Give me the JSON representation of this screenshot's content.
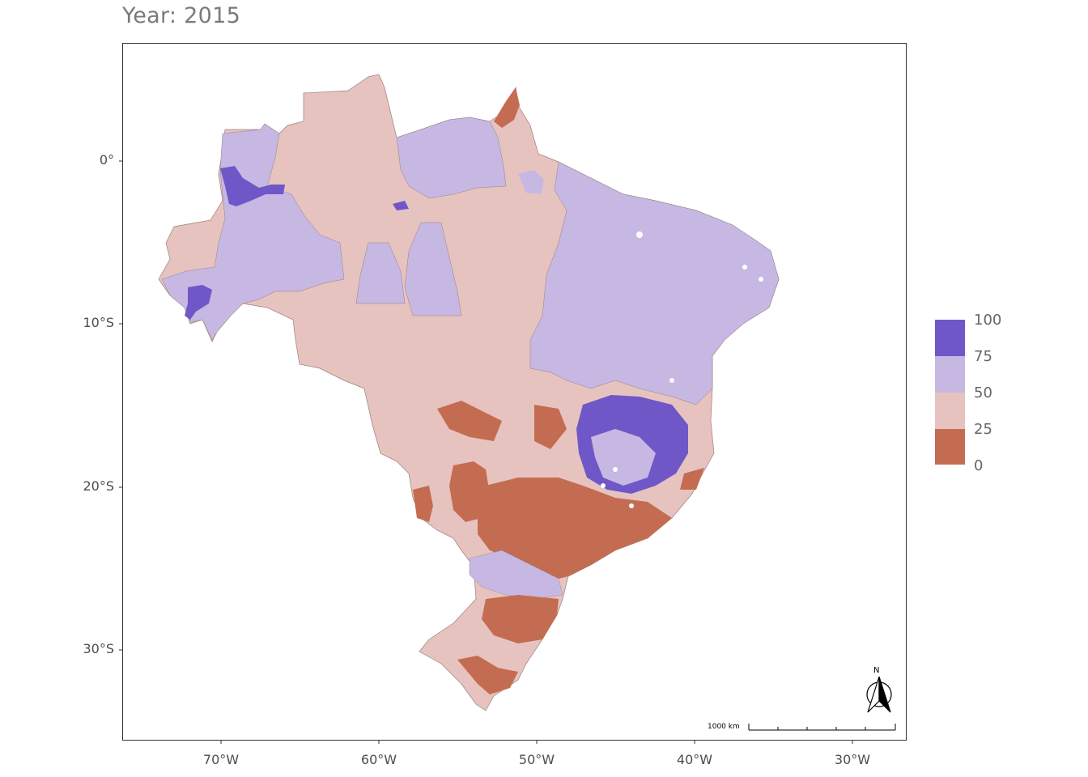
{
  "title": "Year: 2015",
  "axes": {
    "y_ticks": [
      "0°",
      "10°S",
      "20°S",
      "30°S"
    ],
    "x_ticks": [
      "70°W",
      "60°W",
      "50°W",
      "40°W",
      "30°W"
    ]
  },
  "legend": {
    "labels": [
      "100",
      "75",
      "50",
      "25",
      "0"
    ],
    "colors": [
      "#6f57c8",
      "#c6b8e3",
      "#e6c3bf",
      "#c46c52"
    ]
  },
  "scale_bar": {
    "label": "1000 km"
  },
  "north_arrow": {
    "label": "N"
  },
  "map": {
    "region": "Brazil municipalities",
    "background": "#ffffff",
    "border_color": "#8a6e6e"
  }
}
